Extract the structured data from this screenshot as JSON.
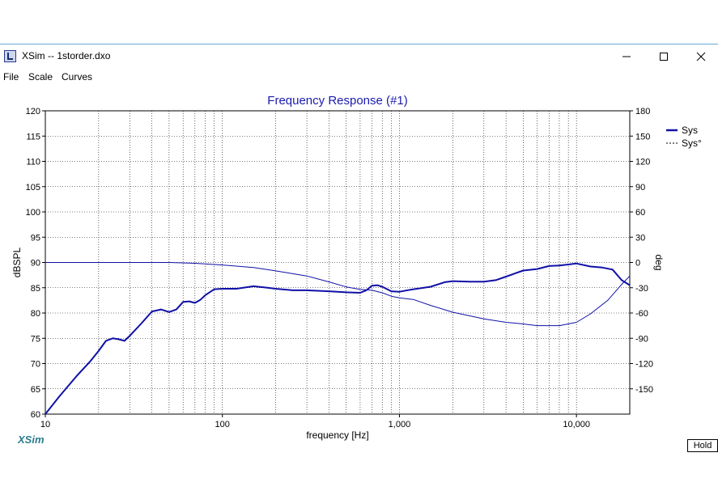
{
  "window": {
    "title": "XSim -- 1storder.dxo",
    "controls": {
      "minimize_icon": "minimize-icon",
      "maximize_icon": "maximize-icon",
      "close_icon": "close-icon"
    }
  },
  "menu": {
    "items": [
      {
        "label": "File"
      },
      {
        "label": "Scale"
      },
      {
        "label": "Curves"
      }
    ]
  },
  "brand": "XSim",
  "hold_label": "Hold",
  "colors": {
    "curve": "#1010a8",
    "title": "#1a1ab0",
    "grid": "#000000"
  },
  "chart_data": {
    "type": "line",
    "title": "Frequency Response (#1)",
    "xlabel": "frequency [Hz]",
    "ylabel": "dBSPL",
    "y2label": "deg",
    "x_scale": "log",
    "xlim": [
      10,
      20000
    ],
    "ylim": [
      60,
      120
    ],
    "y2lim": [
      -180,
      180
    ],
    "x_ticks": [
      10,
      100,
      1000,
      10000
    ],
    "x_tick_labels": [
      "10",
      "100",
      "1,000",
      "10,000"
    ],
    "y_ticks": [
      60,
      65,
      70,
      75,
      80,
      85,
      90,
      95,
      100,
      105,
      110,
      115,
      120
    ],
    "y2_ticks": [
      -150,
      -120,
      -90,
      -60,
      -30,
      0,
      30,
      60,
      90,
      120,
      150,
      180
    ],
    "grid": true,
    "legend_position": "right",
    "series": [
      {
        "name": "Sys",
        "axis": "left",
        "style": "solid-thick",
        "x": [
          10,
          12,
          15,
          18,
          20,
          22,
          24,
          26,
          28,
          30,
          35,
          40,
          45,
          50,
          55,
          60,
          65,
          70,
          75,
          80,
          90,
          100,
          120,
          150,
          180,
          200,
          250,
          300,
          400,
          500,
          600,
          650,
          700,
          750,
          800,
          900,
          1000,
          1200,
          1500,
          1800,
          2000,
          2500,
          3000,
          3500,
          4000,
          5000,
          6000,
          7000,
          8000,
          9000,
          10000,
          12000,
          14000,
          16000,
          18000,
          20000
        ],
        "y": [
          60,
          63.5,
          67.5,
          70.5,
          72.5,
          74.5,
          75,
          74.8,
          74.5,
          75.5,
          78,
          80.3,
          80.7,
          80.2,
          80.7,
          82.2,
          82.3,
          82,
          82.6,
          83.5,
          84.7,
          84.8,
          84.8,
          85.3,
          85,
          84.8,
          84.5,
          84.5,
          84.3,
          84.1,
          84,
          84.5,
          85.4,
          85.5,
          85.2,
          84.3,
          84.2,
          84.7,
          85.2,
          86.1,
          86.3,
          86.2,
          86.2,
          86.5,
          87.2,
          88.4,
          88.7,
          89.3,
          89.4,
          89.6,
          89.8,
          89.2,
          89,
          88.6,
          86.5,
          85.5
        ]
      },
      {
        "name": "Sys°",
        "axis": "right",
        "style": "solid-thin",
        "x": [
          10,
          20,
          50,
          70,
          100,
          150,
          200,
          300,
          400,
          500,
          600,
          700,
          800,
          900,
          1000,
          1200,
          1500,
          2000,
          3000,
          4000,
          5000,
          6000,
          8000,
          10000,
          12000,
          15000,
          18000,
          20000
        ],
        "y": [
          0,
          0,
          0,
          -1,
          -3,
          -6,
          -10,
          -16,
          -23,
          -29,
          -32,
          -33,
          -36,
          -40,
          -42,
          -44,
          -51,
          -59,
          -67,
          -71,
          -73,
          -75,
          -75,
          -71,
          -61,
          -45,
          -26,
          -16
        ]
      }
    ]
  }
}
